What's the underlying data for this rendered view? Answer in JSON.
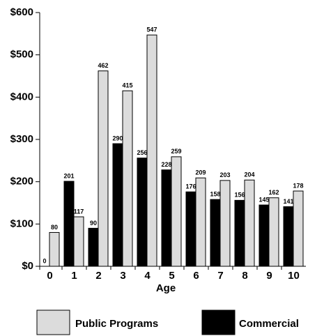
{
  "chart_data": {
    "type": "bar",
    "x_label": "Age",
    "categories": [
      "0",
      "1",
      "2",
      "3",
      "4",
      "5",
      "6",
      "7",
      "8",
      "9",
      "10"
    ],
    "series": [
      {
        "name": "Public Programs",
        "color": "#dcdcdc",
        "values": [
          80,
          117,
          462,
          415,
          547,
          259,
          209,
          203,
          204,
          162,
          178
        ]
      },
      {
        "name": "Commercial",
        "color": "#000000",
        "values": [
          0,
          201,
          90,
          290,
          256,
          228,
          176,
          158,
          156,
          145,
          141
        ]
      }
    ],
    "ylim": [
      0,
      600
    ],
    "yticks": [
      {
        "value": 0,
        "label": "$0"
      },
      {
        "value": 100,
        "label": "$100"
      },
      {
        "value": 200,
        "label": "$200"
      },
      {
        "value": 300,
        "label": "$300"
      },
      {
        "value": 400,
        "label": "$400"
      },
      {
        "value": 500,
        "label": "$500"
      },
      {
        "value": 600,
        "label": "$600"
      }
    ],
    "grid": false,
    "legend": "bottom"
  }
}
